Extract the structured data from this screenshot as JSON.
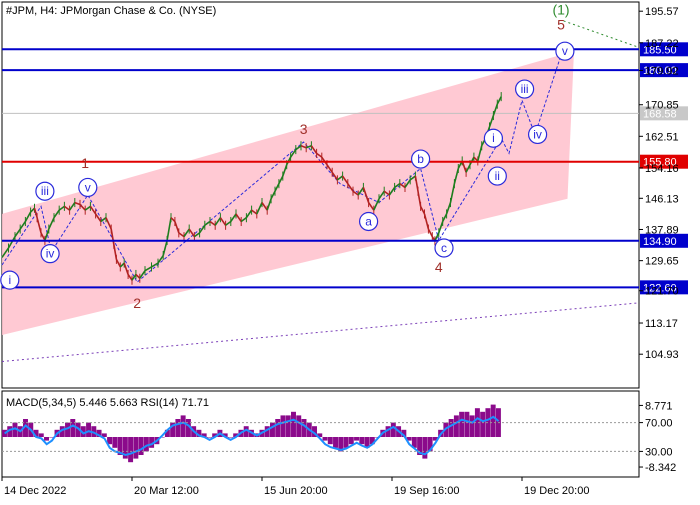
{
  "header": {
    "symbol_text": "#JPM, H4:  JPMorgan Chase & Co. (NYSE)"
  },
  "colors": {
    "channel_fill": "#ffc0cb",
    "support_line": "#0000cc",
    "resistance_line": "#e00000",
    "wave_label_dark": "#a0302a",
    "wave_label_blue": "#2a2adb",
    "wave_label_green": "#2e8b2e",
    "candle_up": "#1e7d1e",
    "candle_down": "#b22222",
    "macd_hist": "#8b0a8b",
    "rsi_line": "#1e90ff"
  },
  "chart_data": [
    {
      "type": "line",
      "title": "#JPM, H4:  JPMorgan Chase & Co. (NYSE)",
      "ylim": [
        96.0,
        198.0
      ],
      "y_ticks": [
        {
          "value": 195.57,
          "label": "195.57"
        },
        {
          "value": 187.22,
          "label": "187.22"
        },
        {
          "value": 179.92,
          "label": "179.92"
        },
        {
          "value": 170.85,
          "label": "170.85"
        },
        {
          "value": 162.51,
          "label": "162.51"
        },
        {
          "value": 154.16,
          "label": "154.16"
        },
        {
          "value": 146.13,
          "label": "146.13"
        },
        {
          "value": 137.89,
          "label": "137.89"
        },
        {
          "value": 129.65,
          "label": "129.65"
        },
        {
          "value": 121.7,
          "label": "121.70"
        },
        {
          "value": 113.17,
          "label": "113.17"
        },
        {
          "value": 104.93,
          "label": "104.93"
        }
      ],
      "x_ticks": [
        {
          "x": 0,
          "label": "14 Dec 2022"
        },
        {
          "x": 100,
          "label": "20 Mar 12:00"
        },
        {
          "x": 200,
          "label": "15 Jun 20:00"
        },
        {
          "x": 300,
          "label": "19 Sep 16:00"
        },
        {
          "x": 400,
          "label": "19 Dec 20:00"
        }
      ],
      "x_range": [
        0,
        490
      ],
      "price_series": [
        [
          0,
          130.5
        ],
        [
          5,
          133
        ],
        [
          10,
          136
        ],
        [
          14,
          138
        ],
        [
          18,
          140
        ],
        [
          22,
          142.5
        ],
        [
          25,
          143.5
        ],
        [
          27,
          141
        ],
        [
          30,
          137
        ],
        [
          33,
          135
        ],
        [
          36,
          138
        ],
        [
          40,
          141
        ],
        [
          44,
          143
        ],
        [
          48,
          144
        ],
        [
          52,
          143
        ],
        [
          56,
          145
        ],
        [
          60,
          144.5
        ],
        [
          64,
          143
        ],
        [
          68,
          144
        ],
        [
          72,
          142
        ],
        [
          76,
          140
        ],
        [
          80,
          141
        ],
        [
          84,
          138
        ],
        [
          86,
          134
        ],
        [
          88,
          130
        ],
        [
          91,
          128
        ],
        [
          94,
          129
        ],
        [
          97,
          126
        ],
        [
          100,
          124.5
        ],
        [
          103,
          126
        ],
        [
          106,
          125
        ],
        [
          110,
          127
        ],
        [
          115,
          128
        ],
        [
          120,
          129
        ],
        [
          124,
          131
        ],
        [
          127,
          135
        ],
        [
          130,
          141
        ],
        [
          133,
          140
        ],
        [
          136,
          137
        ],
        [
          140,
          136
        ],
        [
          144,
          138
        ],
        [
          148,
          136
        ],
        [
          152,
          137
        ],
        [
          156,
          139
        ],
        [
          160,
          140
        ],
        [
          164,
          139
        ],
        [
          168,
          141
        ],
        [
          172,
          139
        ],
        [
          176,
          140
        ],
        [
          180,
          142
        ],
        [
          184,
          140
        ],
        [
          188,
          141
        ],
        [
          192,
          143
        ],
        [
          196,
          142
        ],
        [
          200,
          145
        ],
        [
          204,
          143
        ],
        [
          207,
          146
        ],
        [
          210,
          148
        ],
        [
          213,
          150
        ],
        [
          216,
          152
        ],
        [
          219,
          155
        ],
        [
          222,
          157
        ],
        [
          226,
          159
        ],
        [
          230,
          160
        ],
        [
          234,
          159.5
        ],
        [
          238,
          160
        ],
        [
          242,
          158
        ],
        [
          246,
          157
        ],
        [
          250,
          155
        ],
        [
          254,
          153
        ],
        [
          258,
          151
        ],
        [
          262,
          152
        ],
        [
          266,
          150
        ],
        [
          270,
          148
        ],
        [
          274,
          147
        ],
        [
          278,
          149
        ],
        [
          282,
          145
        ],
        [
          286,
          143
        ],
        [
          290,
          146
        ],
        [
          294,
          148
        ],
        [
          298,
          147
        ],
        [
          302,
          149
        ],
        [
          306,
          150
        ],
        [
          310,
          149
        ],
        [
          314,
          151
        ],
        [
          318,
          152
        ],
        [
          320,
          148
        ],
        [
          322,
          144
        ],
        [
          325,
          142
        ],
        [
          328,
          138
        ],
        [
          331,
          136
        ],
        [
          333,
          134.9
        ],
        [
          336,
          137
        ],
        [
          339,
          140
        ],
        [
          342,
          142
        ],
        [
          345,
          145
        ],
        [
          348,
          150
        ],
        [
          351,
          154
        ],
        [
          354,
          156
        ],
        [
          357,
          153
        ],
        [
          360,
          155
        ],
        [
          363,
          157
        ],
        [
          366,
          156
        ],
        [
          369,
          160
        ],
        [
          372,
          162
        ],
        [
          375,
          165
        ],
        [
          378,
          168
        ],
        [
          381,
          171
        ],
        [
          384,
          173
        ]
      ],
      "channel_polygon": [
        [
          0,
          142
        ],
        [
          440,
          185
        ],
        [
          435,
          146
        ],
        [
          0,
          110
        ]
      ],
      "horizontal_levels": [
        {
          "value": 185.5,
          "label": "185.50",
          "role": "support"
        },
        {
          "value": 180.0,
          "label": "180.00",
          "role": "support"
        },
        {
          "value": 155.8,
          "label": "155.80",
          "role": "resistance"
        },
        {
          "value": 134.9,
          "label": "134.90",
          "role": "support"
        },
        {
          "value": 122.6,
          "label": "122.60",
          "role": "support"
        }
      ],
      "current_price": {
        "value": 168.58,
        "label": "168.58"
      },
      "wave_labels": [
        {
          "text": "1",
          "x": 64,
          "y": 155.5,
          "style": "dark"
        },
        {
          "text": "2",
          "x": 104,
          "y": 118.5,
          "style": "dark"
        },
        {
          "text": "3",
          "x": 232,
          "y": 164.5,
          "style": "dark"
        },
        {
          "text": "4",
          "x": 336,
          "y": 128,
          "style": "dark"
        },
        {
          "text": "5",
          "x": 430,
          "y": 192,
          "style": "dark"
        },
        {
          "text": "(1)",
          "x": 430,
          "y": 196,
          "style": "green"
        },
        {
          "text": "iii",
          "x": 33,
          "y": 148,
          "style": "blue-circle"
        },
        {
          "text": "v",
          "x": 66,
          "y": 149,
          "style": "blue-circle"
        },
        {
          "text": "iv",
          "x": 37,
          "y": 131.5,
          "style": "blue-circle"
        },
        {
          "text": "i",
          "x": 6,
          "y": 124.5,
          "style": "blue-circle"
        },
        {
          "text": "a",
          "x": 282,
          "y": 140,
          "style": "blue-circle"
        },
        {
          "text": "b",
          "x": 322,
          "y": 156.5,
          "style": "blue-circle"
        },
        {
          "text": "c",
          "x": 340,
          "y": 133,
          "style": "blue-circle"
        },
        {
          "text": "i",
          "x": 378,
          "y": 162,
          "style": "blue-circle"
        },
        {
          "text": "ii",
          "x": 381,
          "y": 152,
          "style": "blue-circle"
        },
        {
          "text": "iii",
          "x": 402,
          "y": 175,
          "style": "blue-circle"
        },
        {
          "text": "iv",
          "x": 412,
          "y": 163,
          "style": "blue-circle"
        },
        {
          "text": "v",
          "x": 433,
          "y": 185,
          "style": "blue-circle"
        }
      ],
      "trend_lines": [
        {
          "points": [
            [
              0,
              103
            ],
            [
              490,
              118.5
            ]
          ],
          "style": "purple-dotted"
        },
        {
          "points": [
            [
              432,
              193
            ],
            [
              490,
              186
            ]
          ],
          "style": "green-dotted"
        },
        {
          "points": [
            [
              0,
              128.5
            ],
            [
              30,
              144
            ],
            [
              38,
              132
            ],
            [
              66,
              147
            ],
            [
              104,
              124
            ],
            [
              232,
              161
            ],
            [
              260,
              150
            ],
            [
              290,
              145
            ],
            [
              322,
              154
            ],
            [
              336,
              135
            ],
            [
              384,
              162
            ],
            [
              390,
              158
            ],
            [
              400,
              172
            ],
            [
              410,
              163
            ],
            [
              432,
              186
            ]
          ],
          "style": "blue-dashed-path"
        }
      ]
    },
    {
      "type": "bar",
      "title": "MACD(5,34,5) 5.446 5.663 RSI(14) 71.71",
      "ylim": [
        -10,
        10
      ],
      "y_ticks": [
        {
          "value": 8.771,
          "label": "8.771"
        },
        {
          "value": -8.342,
          "label": "-8.342"
        }
      ],
      "rsi_ticks": [
        {
          "value": 70,
          "label": "70.00"
        },
        {
          "value": 30,
          "label": "30.00"
        }
      ],
      "macd_values": [
        2,
        3,
        4,
        3,
        5,
        4,
        2,
        1,
        -1,
        0,
        2,
        3,
        4,
        5,
        4,
        3,
        4,
        3,
        2,
        1,
        -2,
        -3,
        -5,
        -6,
        -7,
        -6,
        -5,
        -4,
        -3,
        -2,
        0,
        2,
        4,
        5,
        6,
        5,
        3,
        2,
        1,
        0,
        1,
        2,
        1,
        0,
        1,
        2,
        3,
        2,
        1,
        2,
        3,
        4,
        5,
        6,
        6,
        7,
        6,
        5,
        4,
        3,
        1,
        -1,
        -2,
        -3,
        -4,
        -3,
        -2,
        -1,
        -2,
        -3,
        -2,
        0,
        2,
        3,
        4,
        3,
        2,
        -1,
        -3,
        -5,
        -6,
        -4,
        -1,
        2,
        4,
        5,
        6,
        7,
        7,
        6,
        8,
        7,
        8,
        9,
        8
      ],
      "rsi_values": [
        55,
        60,
        62,
        58,
        66,
        60,
        50,
        48,
        40,
        45,
        55,
        60,
        62,
        66,
        62,
        55,
        58,
        56,
        52,
        48,
        35,
        30,
        28,
        25,
        27,
        30,
        33,
        38,
        40,
        45,
        52,
        60,
        66,
        68,
        70,
        66,
        58,
        52,
        50,
        46,
        50,
        55,
        50,
        46,
        50,
        56,
        60,
        56,
        52,
        56,
        60,
        64,
        68,
        70,
        72,
        74,
        70,
        66,
        60,
        55,
        48,
        40,
        36,
        34,
        32,
        34,
        38,
        42,
        38,
        35,
        40,
        48,
        56,
        60,
        64,
        58,
        52,
        40,
        34,
        28,
        26,
        32,
        42,
        54,
        62,
        66,
        70,
        74,
        72,
        70,
        76,
        72,
        74,
        78,
        72
      ]
    }
  ]
}
